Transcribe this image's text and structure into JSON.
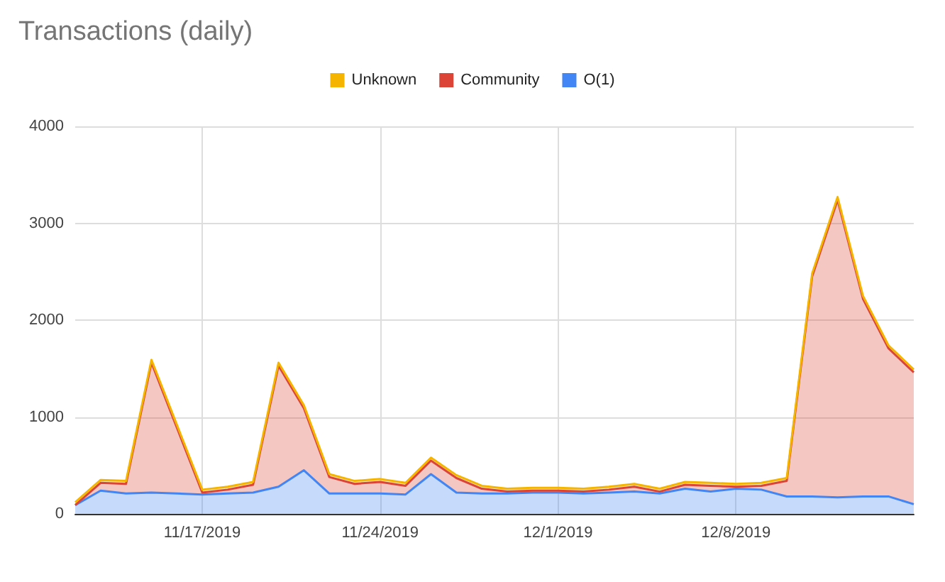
{
  "chart_data": {
    "type": "area",
    "title": "Transactions (daily)",
    "stacked": true,
    "legend": "top",
    "grid": true,
    "marker": "none",
    "x": [
      "2019-11-12",
      "2019-11-13",
      "2019-11-14",
      "2019-11-15",
      "2019-11-16",
      "2019-11-17",
      "2019-11-18",
      "2019-11-19",
      "2019-11-20",
      "2019-11-21",
      "2019-11-22",
      "2019-11-23",
      "2019-11-24",
      "2019-11-25",
      "2019-11-26",
      "2019-11-27",
      "2019-11-28",
      "2019-11-29",
      "2019-11-30",
      "2019-12-01",
      "2019-12-02",
      "2019-12-03",
      "2019-12-04",
      "2019-12-05",
      "2019-12-06",
      "2019-12-07",
      "2019-12-08",
      "2019-12-09",
      "2019-12-10",
      "2019-12-11",
      "2019-12-12",
      "2019-12-13",
      "2019-12-14",
      "2019-12-15"
    ],
    "series": [
      {
        "name": "O(1)",
        "color": "#4285f4",
        "values": [
          90,
          240,
          210,
          220,
          210,
          200,
          210,
          220,
          280,
          450,
          210,
          210,
          210,
          200,
          410,
          220,
          210,
          210,
          220,
          220,
          210,
          220,
          230,
          210,
          260,
          230,
          260,
          250,
          180,
          180,
          170,
          180,
          180,
          100
        ]
      },
      {
        "name": "Community",
        "color": "#db4437",
        "values": [
          0,
          80,
          100,
          1340,
          680,
          20,
          40,
          80,
          1250,
          640,
          170,
          100,
          120,
          90,
          140,
          150,
          50,
          20,
          20,
          20,
          20,
          30,
          50,
          20,
          40,
          60,
          20,
          40,
          160,
          2270,
          3070,
          2040,
          1530,
          1360
        ]
      },
      {
        "name": "Unknown",
        "color": "#f4b400",
        "values": [
          30,
          30,
          30,
          30,
          30,
          30,
          30,
          30,
          30,
          30,
          30,
          30,
          30,
          30,
          30,
          30,
          30,
          30,
          30,
          30,
          30,
          30,
          30,
          30,
          30,
          30,
          30,
          30,
          30,
          30,
          30,
          30,
          30,
          30
        ]
      }
    ],
    "xlim": [
      "2019-11-12",
      "2019-12-15"
    ],
    "xticks": [
      {
        "value": "2019-11-17",
        "label": "11/17/2019"
      },
      {
        "value": "2019-11-24",
        "label": "11/24/2019"
      },
      {
        "value": "2019-12-01",
        "label": "12/1/2019"
      },
      {
        "value": "2019-12-08",
        "label": "12/8/2019"
      }
    ],
    "ylim": [
      0,
      4000
    ],
    "yticks": [
      0,
      1000,
      2000,
      3000,
      4000
    ]
  }
}
